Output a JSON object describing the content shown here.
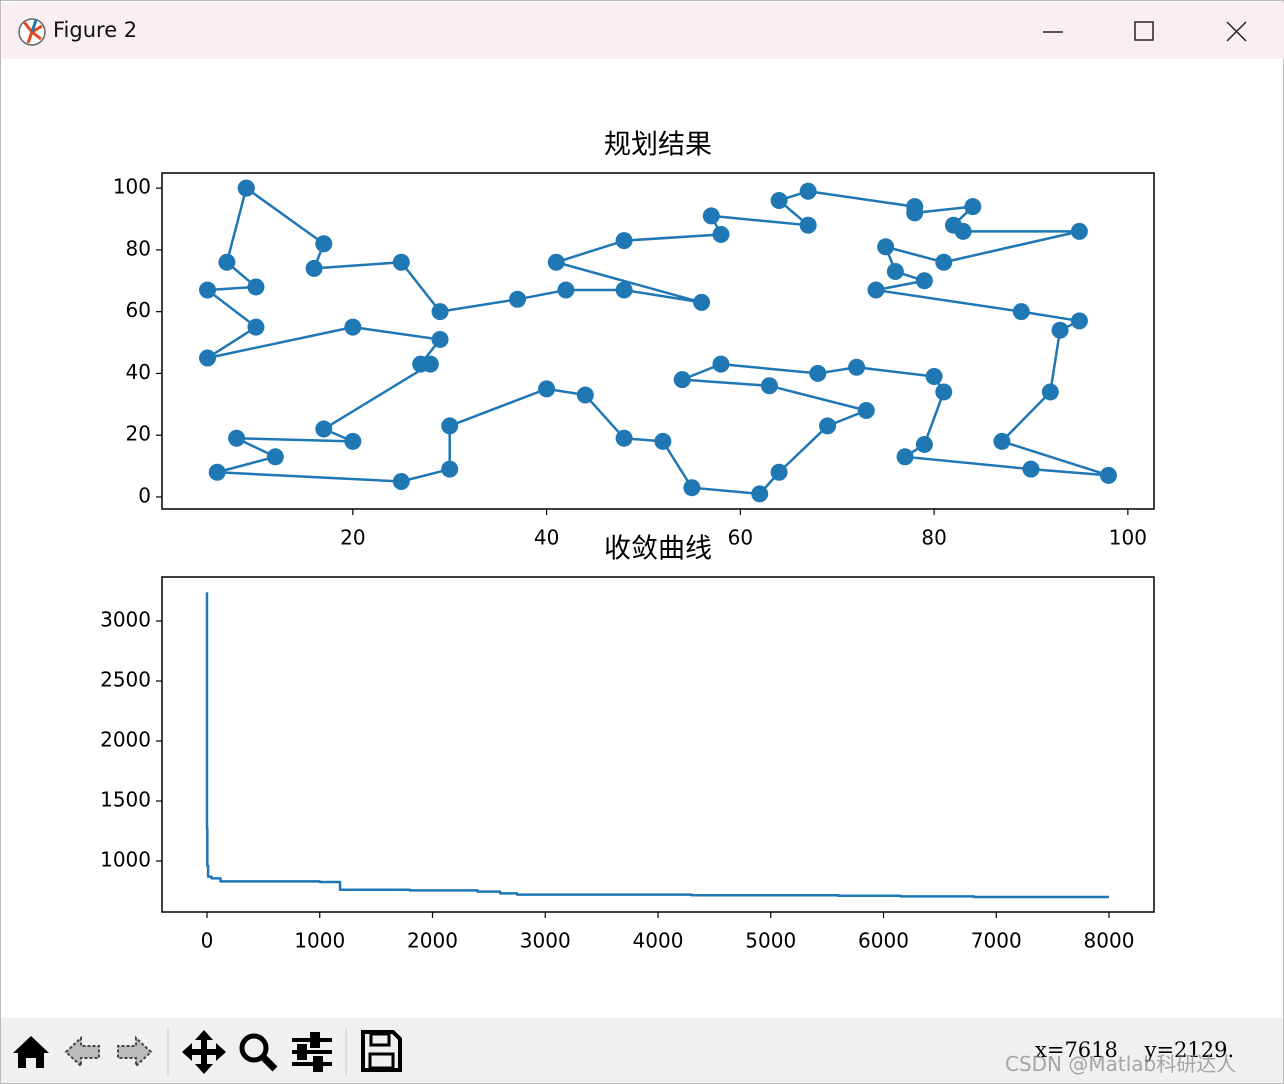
{
  "window": {
    "title": "Figure 2"
  },
  "chart_data": [
    {
      "type": "line",
      "title": "规划结果",
      "marker": "circle",
      "grid": false,
      "x": [
        9,
        17,
        16,
        25,
        29,
        37,
        42,
        48,
        56,
        41,
        48,
        58,
        57,
        67,
        64,
        67,
        78,
        78,
        84,
        82,
        83,
        95,
        81,
        75,
        76,
        79,
        74,
        89,
        95,
        93,
        92,
        87,
        98,
        90,
        77,
        79,
        81,
        80,
        72,
        68,
        58,
        54,
        63,
        73,
        69,
        64,
        62,
        55,
        52,
        48,
        44,
        40,
        30,
        30,
        25,
        6,
        12,
        8,
        20,
        17,
        28,
        27,
        29,
        20,
        5,
        10,
        5,
        10,
        7,
        9
      ],
      "series": [
        {
          "color": "#1f77b4",
          "values": [
            100,
            82,
            74,
            76,
            60,
            64,
            67,
            67,
            63,
            76,
            83,
            85,
            91,
            88,
            96,
            99,
            94,
            92,
            94,
            88,
            86,
            86,
            76,
            81,
            73,
            70,
            67,
            60,
            57,
            54,
            34,
            18,
            7,
            9,
            13,
            17,
            34,
            39,
            42,
            40,
            43,
            38,
            36,
            28,
            23,
            8,
            1,
            3,
            18,
            19,
            33,
            35,
            23,
            9,
            5,
            8,
            13,
            19,
            18,
            22,
            43,
            43,
            51,
            55,
            45,
            55,
            67,
            68,
            76,
            100
          ]
        }
      ],
      "xlim": [
        0.3,
        102.7
      ],
      "xticks": [
        20,
        40,
        60,
        80,
        100
      ],
      "ylim": [
        -3.9,
        104.9
      ],
      "yticks": [
        0,
        20,
        40,
        60,
        80,
        100
      ]
    },
    {
      "type": "line",
      "title": "收敛曲线",
      "grid": false,
      "x": [
        0,
        0,
        3,
        3,
        10,
        10,
        40,
        40,
        120,
        120,
        1000,
        1000,
        1180,
        1180,
        1800,
        1800,
        2400,
        2400,
        2600,
        2600,
        2750,
        2750,
        4300,
        4300,
        5600,
        5600,
        6150,
        6150,
        6800,
        6800,
        8000
      ],
      "series": [
        {
          "color": "#1f77b4",
          "values": [
            3240,
            1270,
            1270,
            960,
            960,
            870,
            870,
            855,
            855,
            830,
            830,
            825,
            825,
            760,
            760,
            755,
            755,
            745,
            745,
            730,
            730,
            720,
            720,
            715,
            715,
            710,
            710,
            705,
            705,
            700,
            700
          ]
        }
      ],
      "xlim": [
        -399,
        8399
      ],
      "xticks": [
        0,
        1000,
        2000,
        3000,
        4000,
        5000,
        6000,
        7000,
        8000
      ],
      "ylim": [
        575,
        3367
      ],
      "yticks": [
        1000,
        1500,
        2000,
        2500,
        3000
      ]
    }
  ],
  "toolbar": {
    "status": "x=7618    y=2129."
  },
  "watermark": "CSDN @Matlab科研达人"
}
